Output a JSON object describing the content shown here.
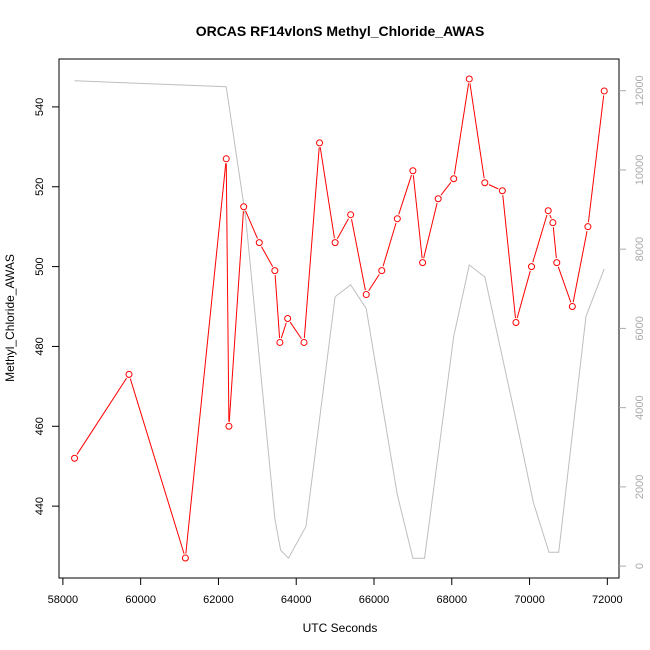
{
  "chart_data": {
    "type": "line",
    "title": "ORCAS RF14vlonS Methyl_Chloride_AWAS",
    "xlabel": "UTC Seconds",
    "ylabel": "Methyl_Chloride_AWAS",
    "xlim": [
      57900,
      72300
    ],
    "ylim": [
      422,
      552
    ],
    "y2lim": [
      -300,
      12800
    ],
    "x_ticks": [
      58000,
      60000,
      62000,
      64000,
      66000,
      68000,
      70000,
      72000
    ],
    "x_tick_labels": [
      "58000",
      "60000",
      "62000",
      "64000",
      "66000",
      "68000",
      "70000",
      "72000"
    ],
    "y_ticks": [
      440,
      460,
      480,
      500,
      520,
      540
    ],
    "y_tick_labels": [
      "440",
      "460",
      "480",
      "500",
      "520",
      "540"
    ],
    "y2_ticks": [
      0,
      2000,
      4000,
      6000,
      8000,
      10000,
      12000
    ],
    "y2_tick_labels": [
      "0",
      "2000",
      "4000",
      "6000",
      "8000",
      "10000",
      "12000"
    ],
    "grid": false,
    "colors": {
      "primary": "#ff0000",
      "secondary": "#bebebe",
      "axis": "#000000",
      "right_axis": "#aaaaaa"
    },
    "series": [
      {
        "axis": "left",
        "style": "line+points",
        "x": [
          58300,
          59700,
          61150,
          62200,
          62270,
          62650,
          63050,
          63450,
          63580,
          63780,
          64200,
          64600,
          65000,
          65400,
          65800,
          66200,
          66600,
          67000,
          67250,
          67650,
          68050,
          68450,
          68850,
          69300,
          69650,
          70050,
          70480,
          70600,
          70700,
          71100,
          71500,
          71920
        ],
        "values": [
          452,
          473,
          427,
          527,
          460,
          515,
          506,
          499,
          481,
          487,
          481,
          531,
          506,
          513,
          493,
          499,
          512,
          524,
          501,
          517,
          522,
          547,
          521,
          519,
          486,
          500,
          514,
          511,
          501,
          490,
          510,
          544
        ]
      },
      {
        "axis": "right",
        "style": "line",
        "x": [
          58300,
          62200,
          62700,
          63450,
          63600,
          63800,
          64250,
          65000,
          65400,
          65800,
          66600,
          67000,
          67300,
          68050,
          68450,
          68850,
          69650,
          70100,
          70500,
          70750,
          71450,
          71920
        ],
        "values": [
          12250,
          12100,
          8800,
          1200,
          400,
          200,
          1000,
          6800,
          7100,
          6500,
          1800,
          200,
          200,
          5800,
          7600,
          7300,
          3700,
          1600,
          350,
          350,
          6300,
          7500
        ]
      }
    ]
  }
}
